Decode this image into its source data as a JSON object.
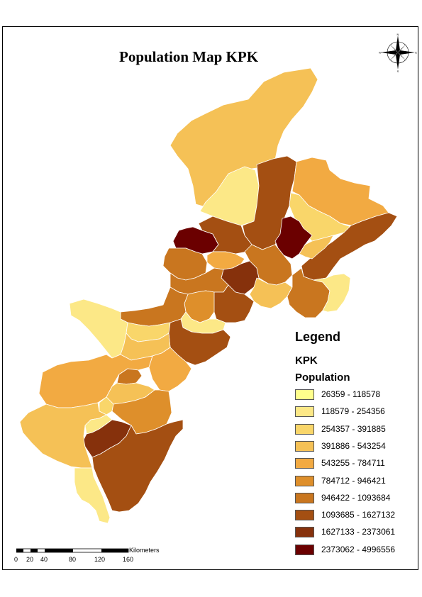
{
  "map": {
    "title": "Population Map KPK"
  },
  "legend": {
    "title": "Legend",
    "layer": "KPK",
    "field": "Population",
    "classes": [
      {
        "label": "26359 - 118578",
        "color": "#ffff8c"
      },
      {
        "label": "118579 - 254356",
        "color": "#fce887"
      },
      {
        "label": "254357 - 391885",
        "color": "#f9d66a"
      },
      {
        "label": "391886 - 543254",
        "color": "#f5c156"
      },
      {
        "label": "543255 - 784711",
        "color": "#f2aa42"
      },
      {
        "label": "784712 - 946421",
        "color": "#de8f2b"
      },
      {
        "label": "946422 - 1093684",
        "color": "#c9761f"
      },
      {
        "label": "1093685 - 1627132",
        "color": "#a44f12"
      },
      {
        "label": "1627133 - 2373061",
        "color": "#86310c"
      },
      {
        "label": "2373062 - 4996556",
        "color": "#6b0000"
      }
    ]
  },
  "scale": {
    "units": "Kilometers",
    "ticks": [
      "0",
      "20",
      "40",
      "80",
      "120",
      "160"
    ]
  },
  "north_arrow": {
    "icon": "compass-rose-icon",
    "labels": [
      "N",
      "E",
      "S",
      "W"
    ]
  }
}
